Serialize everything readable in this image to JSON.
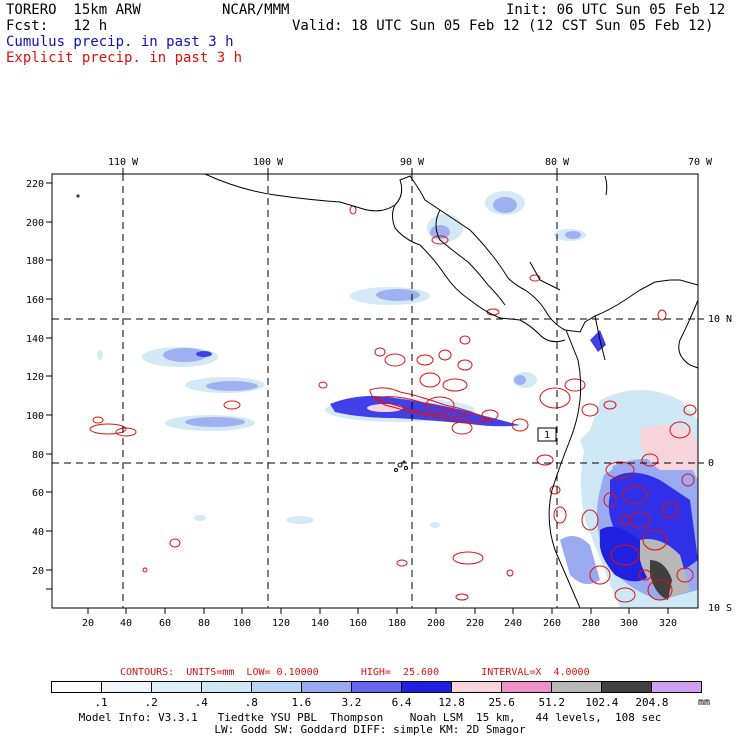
{
  "header": {
    "model": "TORERO  15km ARW",
    "org": "NCAR/MMM",
    "init": "Init: 06 UTC Sun 05 Feb 12",
    "fcst": "Fcst:   12 h",
    "valid": "Valid: 18 UTC Sun 05 Feb 12 (12 CST Sun 05 Feb 12)",
    "field_blue": "Cumulus precip. in past 3 h",
    "field_red": "Explicit precip. in past 3 h"
  },
  "axes": {
    "top_lon": [
      "110 W",
      "100 W",
      "90 W",
      "80 W",
      "70 W"
    ],
    "right_lat": [
      "10 N",
      "0",
      "10 S"
    ],
    "left_ticks": [
      "20",
      "40",
      "60",
      "80",
      "100",
      "120",
      "140",
      "160",
      "180",
      "200",
      "220"
    ],
    "bottom_ticks": [
      "20",
      "40",
      "60",
      "80",
      "100",
      "120",
      "140",
      "160",
      "180",
      "200",
      "220",
      "240",
      "260",
      "280",
      "300",
      "320"
    ]
  },
  "annotations": {
    "max_marker": "1"
  },
  "contours_info": {
    "label": "CONTOURS:  UNITS=mm  LOW= 0.10000       HIGH=  25.600       INTERVAL=X  4.0000"
  },
  "legend": {
    "colors": [
      "#ffffff",
      "#eef6fb",
      "#ddeff8",
      "#cfe8f6",
      "#b8d4f4",
      "#9aaaf0",
      "#6666ee",
      "#2020e0",
      "#f8d4dc",
      "#f090c8",
      "#b8b8b8",
      "#404040",
      "#d0a0f0"
    ],
    "labels": [
      ".1",
      ".2",
      ".4",
      ".8",
      "1.6",
      "3.2",
      "6.4",
      "12.8",
      "25.6",
      "51.2",
      "102.4",
      "204.8"
    ],
    "units": "mm"
  },
  "footer": {
    "line1": "Model Info: V3.3.1   Tiedtke YSU PBL  Thompson    Noah LSM  15 km,   44 levels,  108 sec",
    "line2": "LW: Godd SW: Goddard DIFF: simple KM: 2D Smagor"
  }
}
